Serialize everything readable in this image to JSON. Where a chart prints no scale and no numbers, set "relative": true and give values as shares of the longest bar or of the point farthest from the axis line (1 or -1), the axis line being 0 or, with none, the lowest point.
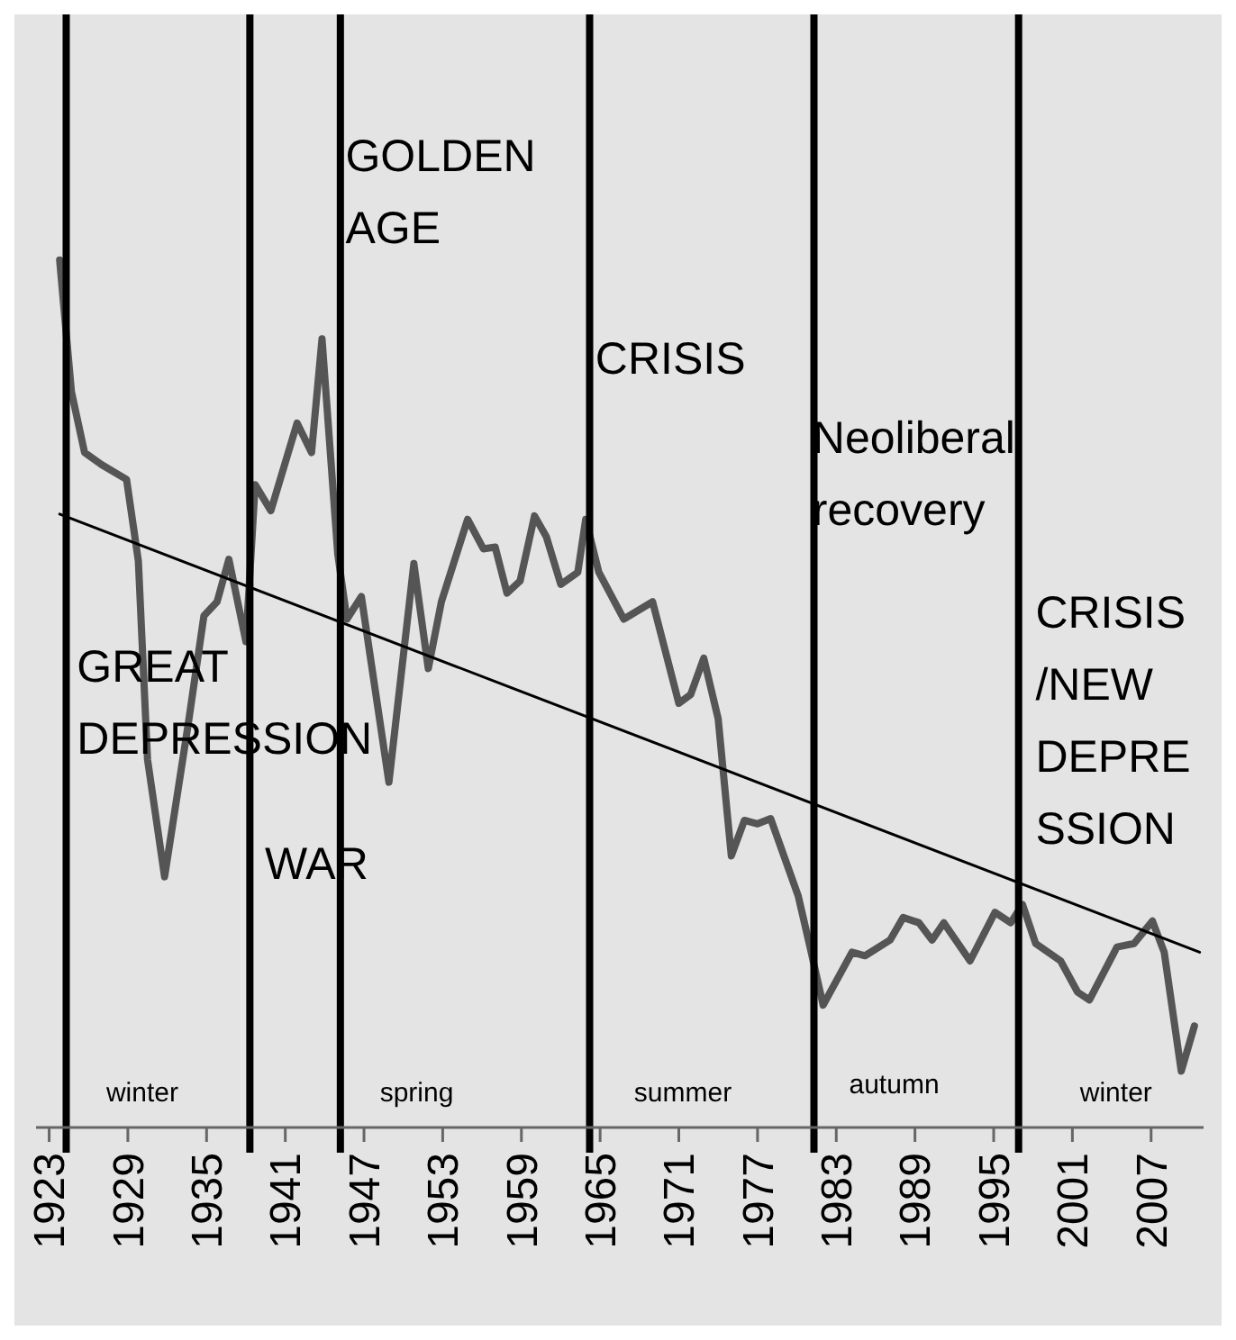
{
  "chart_data": {
    "type": "line",
    "relative": true,
    "tick_labels": "x",
    "xlim": [
      1922,
      2011
    ],
    "xticks": [
      1923,
      1929,
      1935,
      1941,
      1947,
      1953,
      1959,
      1965,
      1971,
      1977,
      1983,
      1989,
      1995,
      2001,
      2007
    ],
    "series": [
      {
        "color": "#555555",
        "line_style": "solid",
        "x": [
          1923.8,
          1924.7,
          1925.7,
          1927,
          1928.9,
          1929.8,
          1930.5,
          1931.8,
          1933.6,
          1934.8,
          1935.8,
          1936.7,
          1938,
          1938.7,
          1939.9,
          1941.9,
          1943,
          1943.8,
          1945,
          1945.7,
          1946.8,
          1948.9,
          1950.8,
          1951.9,
          1952.9,
          1954.9,
          1956.1,
          1957,
          1957.9,
          1958.9,
          1960,
          1960.9,
          1962,
          1963.3,
          1963.9,
          1964.9,
          1966.8,
          1969,
          1971,
          1971.9,
          1972.9,
          1974,
          1975,
          1976,
          1977,
          1978,
          1980.1,
          1981,
          1982,
          1984.2,
          1985.2,
          1987.1,
          1988.1,
          1989.3,
          1990.3,
          1991.2,
          1993.2,
          1995.1,
          1996.3,
          1997.2,
          1998.2,
          2000.1,
          2001.4,
          2002.3,
          2004.4,
          2005.7,
          2007.1,
          2008,
          2009.3,
          2010.3
        ],
        "values": [
          1.0,
          0.848,
          0.778,
          0.764,
          0.747,
          0.653,
          0.424,
          0.289,
          0.465,
          0.59,
          0.606,
          0.655,
          0.56,
          0.741,
          0.711,
          0.812,
          0.778,
          0.909,
          0.661,
          0.586,
          0.612,
          0.398,
          0.65,
          0.529,
          0.606,
          0.701,
          0.667,
          0.669,
          0.616,
          0.63,
          0.705,
          0.681,
          0.626,
          0.64,
          0.701,
          0.64,
          0.586,
          0.606,
          0.489,
          0.499,
          0.541,
          0.471,
          0.313,
          0.354,
          0.35,
          0.356,
          0.267,
          0.208,
          0.141,
          0.202,
          0.198,
          0.216,
          0.242,
          0.236,
          0.216,
          0.236,
          0.192,
          0.248,
          0.236,
          0.257,
          0.212,
          0.192,
          0.156,
          0.147,
          0.208,
          0.212,
          0.238,
          0.202,
          0.065,
          0.117
        ]
      },
      {
        "color": "#000000",
        "line_style": "solid",
        "x": [
          1923.8,
          2010.7
        ],
        "values": [
          0.707,
          0.202
        ]
      }
    ],
    "ref_lines": [
      {
        "axis": "x",
        "value": 1924.3,
        "color": "#000000"
      },
      {
        "axis": "x",
        "value": 1938.3,
        "color": "#000000"
      },
      {
        "axis": "x",
        "value": 1945.2,
        "color": "#000000"
      },
      {
        "axis": "x",
        "value": 1964.2,
        "color": "#000000"
      },
      {
        "axis": "x",
        "value": 1981.3,
        "color": "#000000"
      },
      {
        "axis": "x",
        "value": 1996.9,
        "color": "#000000"
      }
    ],
    "annotations": [
      "GREAT\nDEPRESSION",
      "WAR",
      "GOLDEN\nAGE",
      "CRISIS",
      "Neoliberal\nrecovery",
      "CRISIS\n/NEW\nDEPRE\nSSION",
      "winter",
      "spring",
      "summer",
      "autumn",
      "winter"
    ]
  }
}
